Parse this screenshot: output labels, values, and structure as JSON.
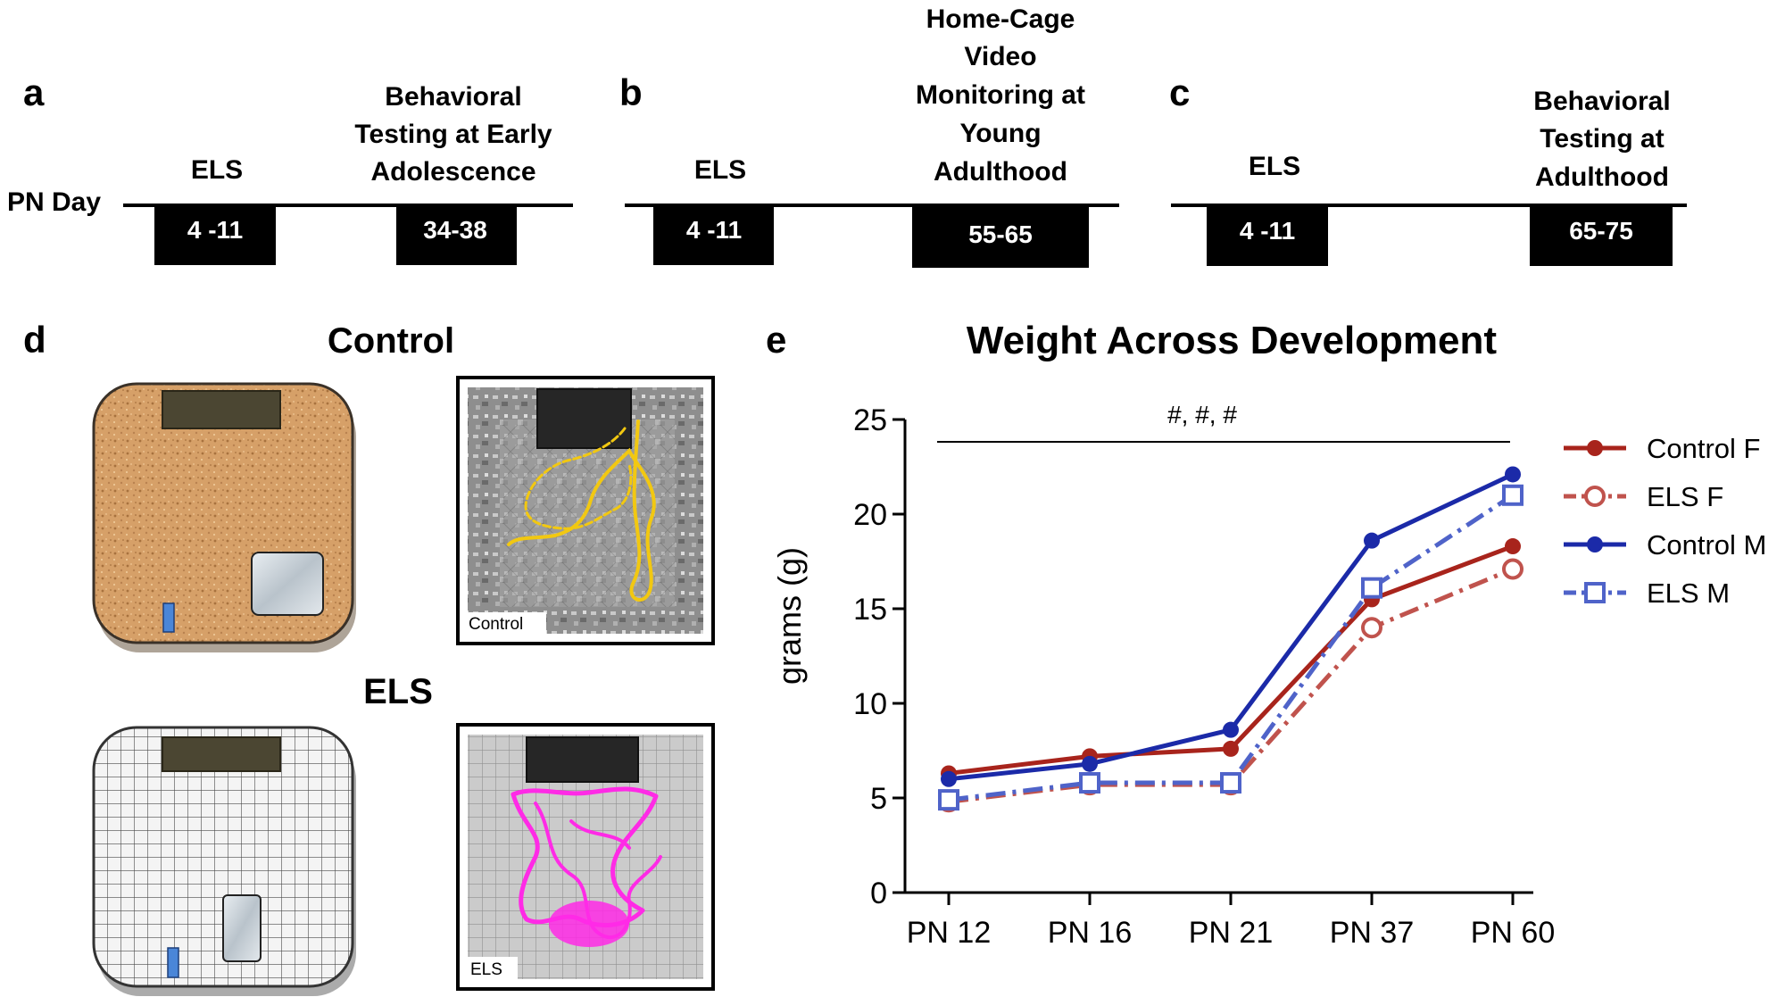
{
  "panels": {
    "a": {
      "letter": "a",
      "axis_label": "PN Day",
      "events": [
        {
          "label": "ELS",
          "days": "4 -11"
        },
        {
          "label_lines": [
            "Behavioral",
            "Testing at Early",
            "Adolescence"
          ],
          "days": "34-38"
        }
      ]
    },
    "b": {
      "letter": "b",
      "events": [
        {
          "label": "ELS",
          "days": "4 -11"
        },
        {
          "label_lines": [
            "Home-Cage",
            "Video",
            "Monitoring at",
            "Young",
            "Adulthood"
          ],
          "days": "55-65"
        }
      ]
    },
    "c": {
      "letter": "c",
      "events": [
        {
          "label": "ELS",
          "days": "4 -11"
        },
        {
          "label_lines": [
            "Behavioral",
            "Testing at",
            "Adulthood"
          ],
          "days": "65-75"
        }
      ]
    },
    "d": {
      "letter": "d",
      "control_title": "Control",
      "els_title": "ELS",
      "control_photo_label": "Control",
      "els_photo_label": "ELS",
      "colors": {
        "control_track": "#f2c811",
        "els_track": "#ff2ae6",
        "bedding": "#d8a56a",
        "water": "#4a86d8",
        "food": "#4a4430"
      }
    },
    "e": {
      "letter": "e"
    }
  },
  "chart_data": {
    "type": "line",
    "title": "Weight Across Development",
    "xlabel": "",
    "ylabel": "grams (g)",
    "categories": [
      "PN 12",
      "PN 16",
      "PN 21",
      "PN 37",
      "PN 60"
    ],
    "ylim": [
      0,
      25
    ],
    "yticks": [
      0,
      5,
      10,
      15,
      20,
      25
    ],
    "annotation": "#, #, #",
    "series": [
      {
        "name": "Control F",
        "values": [
          6.3,
          7.2,
          7.6,
          15.5,
          18.3
        ],
        "color": "#a8241c",
        "dashed": false,
        "marker": "filled-circle"
      },
      {
        "name": "ELS F",
        "values": [
          4.8,
          5.7,
          5.7,
          14.0,
          17.1
        ],
        "color": "#c0534d",
        "dashed": true,
        "marker": "open-circle"
      },
      {
        "name": "Control M",
        "values": [
          6.0,
          6.8,
          8.6,
          18.6,
          22.1
        ],
        "color": "#1b2aa8",
        "dashed": false,
        "marker": "filled-circle"
      },
      {
        "name": "ELS M",
        "values": [
          4.9,
          5.8,
          5.8,
          16.1,
          21.0
        ],
        "color": "#4f63c9",
        "dashed": true,
        "marker": "open-square"
      }
    ]
  }
}
